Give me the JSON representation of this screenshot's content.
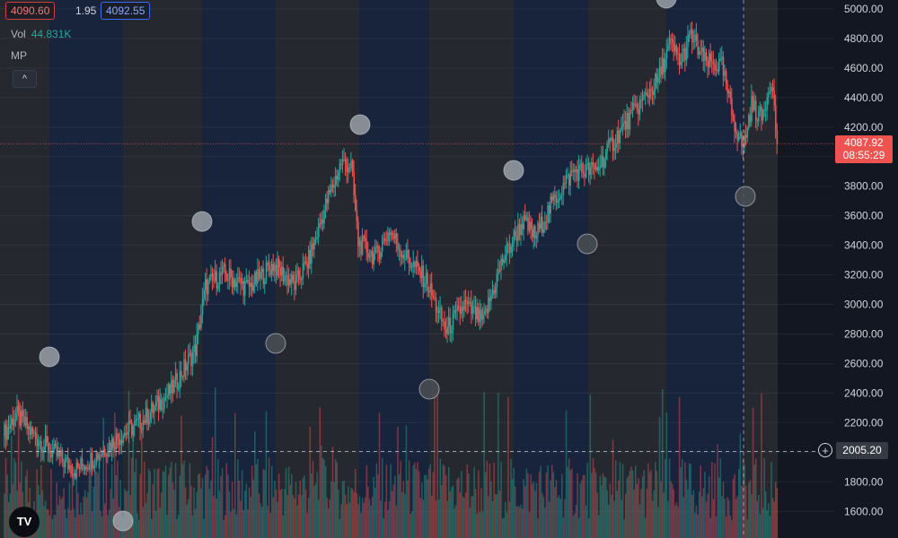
{
  "legend": {
    "bid": "4090.60",
    "spread": "1.95",
    "ask": "4092.55",
    "volume_label": "Vol",
    "volume_value": "44.831K",
    "indicator": "MP",
    "collapse_glyph": "^"
  },
  "price_scale": {
    "current_price": "4087.92",
    "countdown": "08:55:29",
    "crosshair_price": "2005.20",
    "add_glyph": "+"
  },
  "logo_text": "TV",
  "colors": {
    "up": "#26a69a",
    "down": "#ef5350",
    "background": "#131722",
    "band_blue": "#1a2740",
    "band_gray": "#2a2c31"
  },
  "chart_data": {
    "type": "candlestick",
    "y_ticks": [
      1600,
      1800,
      2000,
      2200,
      2400,
      2600,
      2800,
      3000,
      3200,
      3400,
      3600,
      3800,
      4000,
      4200,
      4400,
      4600,
      4800,
      5000
    ],
    "ylim": [
      1420,
      5060
    ],
    "last_price": 4087.92,
    "crosshair_price": 2005.2,
    "anchors": [
      [
        0,
        2130
      ],
      [
        8,
        2260
      ],
      [
        20,
        2120
      ],
      [
        35,
        1990
      ],
      [
        50,
        1880
      ],
      [
        65,
        1980
      ],
      [
        80,
        2100
      ],
      [
        98,
        2220
      ],
      [
        118,
        2420
      ],
      [
        135,
        2700
      ],
      [
        142,
        3120
      ],
      [
        155,
        3210
      ],
      [
        172,
        3110
      ],
      [
        190,
        3270
      ],
      [
        205,
        3130
      ],
      [
        215,
        3300
      ],
      [
        228,
        3700
      ],
      [
        238,
        3960
      ],
      [
        245,
        3940
      ],
      [
        250,
        3420
      ],
      [
        262,
        3320
      ],
      [
        272,
        3500
      ],
      [
        282,
        3340
      ],
      [
        298,
        3160
      ],
      [
        312,
        2820
      ],
      [
        325,
        3000
      ],
      [
        338,
        2880
      ],
      [
        352,
        3300
      ],
      [
        366,
        3560
      ],
      [
        375,
        3460
      ],
      [
        388,
        3700
      ],
      [
        402,
        3900
      ],
      [
        418,
        3910
      ],
      [
        430,
        4100
      ],
      [
        446,
        4320
      ],
      [
        462,
        4520
      ],
      [
        470,
        4760
      ],
      [
        478,
        4640
      ],
      [
        485,
        4820
      ],
      [
        495,
        4640
      ],
      [
        507,
        4610
      ],
      [
        515,
        4250
      ],
      [
        522,
        4060
      ],
      [
        528,
        4350
      ],
      [
        535,
        4260
      ],
      [
        542,
        4540
      ],
      [
        546,
        4087.92
      ]
    ],
    "volume_max_hint": "relative heights only"
  }
}
